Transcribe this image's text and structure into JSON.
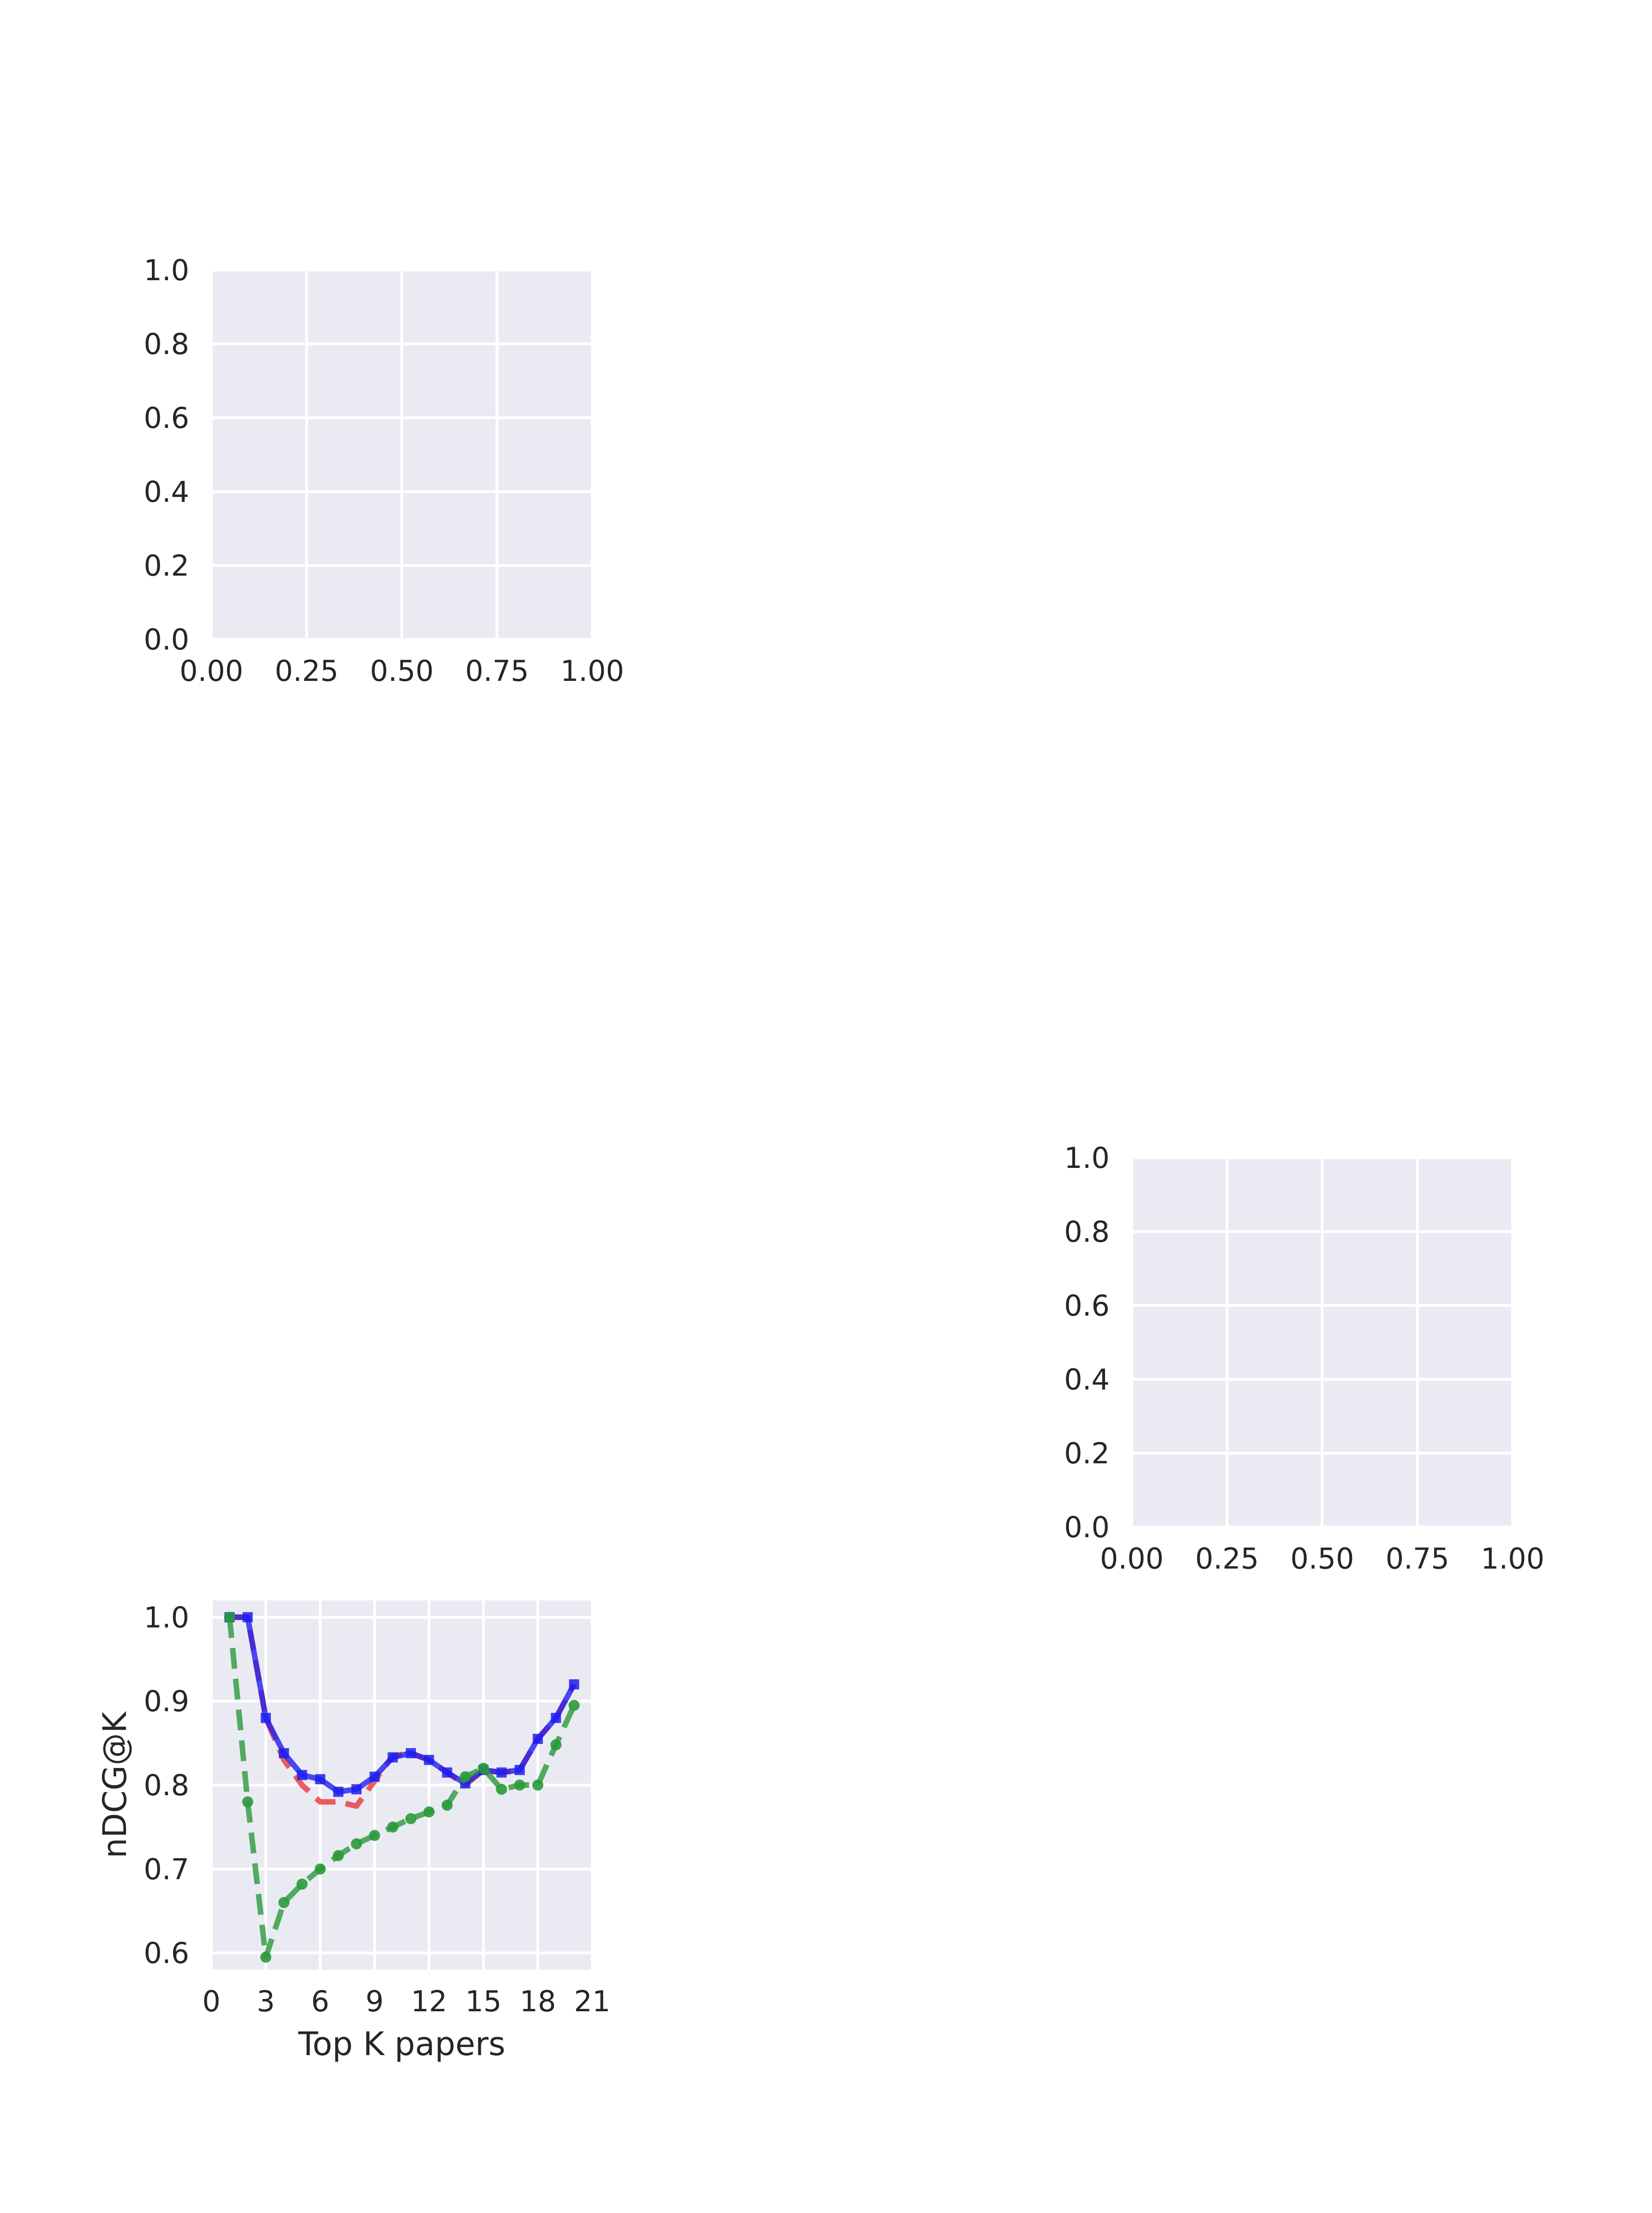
{
  "colors": {
    "plot_background": "#eaeaf2",
    "grid": "#ffffff",
    "text": "#262626"
  },
  "chart_data": [
    {
      "type": "line",
      "title": "",
      "xlabel": "",
      "ylabel": "",
      "xlim": [
        0,
        1
      ],
      "ylim": [
        0,
        1
      ],
      "grid": true,
      "x_ticks": [
        "0.00",
        "0.25",
        "0.50",
        "0.75",
        "1.00"
      ],
      "y_ticks": [
        "0.0",
        "0.2",
        "0.4",
        "0.6",
        "0.8",
        "1.0"
      ],
      "series": []
    },
    {
      "type": "line",
      "title": "",
      "xlabel": "",
      "ylabel": "",
      "xlim": [
        0,
        1
      ],
      "ylim": [
        0,
        1
      ],
      "grid": true,
      "x_ticks": [
        "0.00",
        "0.25",
        "0.50",
        "0.75",
        "1.00"
      ],
      "y_ticks": [
        "0.0",
        "0.2",
        "0.4",
        "0.6",
        "0.8",
        "1.0"
      ],
      "series": []
    },
    {
      "type": "line",
      "title": "",
      "xlabel": "Top K papers",
      "ylabel": "nDCG@K",
      "xlim": [
        0,
        21
      ],
      "ylim": [
        0.58,
        1.02
      ],
      "grid": true,
      "x_ticks": [
        "0",
        "3",
        "6",
        "9",
        "12",
        "15",
        "18",
        "21"
      ],
      "y_ticks": [
        "0.6",
        "0.7",
        "0.8",
        "0.9",
        "1.0"
      ],
      "series": [
        {
          "color": "#e8373a",
          "linestyle": "dashed",
          "marker": "none",
          "x": [
            1,
            2,
            3,
            4,
            5,
            6,
            7,
            8,
            9,
            10,
            11,
            12,
            13,
            14,
            15,
            16,
            17,
            18,
            19,
            20
          ],
          "y": [
            1.0,
            1.0,
            0.88,
            0.83,
            0.8,
            0.78,
            0.78,
            0.775,
            0.805,
            0.835,
            0.838,
            0.83,
            0.815,
            0.8,
            0.818,
            0.815,
            0.818,
            0.855,
            0.88,
            0.92
          ]
        },
        {
          "color": "#1f1ff0",
          "linestyle": "solid",
          "marker": "square",
          "x": [
            1,
            2,
            3,
            4,
            5,
            6,
            7,
            8,
            9,
            10,
            11,
            12,
            13,
            14,
            15,
            16,
            17,
            18,
            19,
            20
          ],
          "y": [
            1.0,
            1.0,
            0.88,
            0.838,
            0.812,
            0.807,
            0.792,
            0.795,
            0.81,
            0.833,
            0.838,
            0.83,
            0.815,
            0.802,
            0.818,
            0.815,
            0.818,
            0.855,
            0.88,
            0.92
          ]
        },
        {
          "color": "#2a9a3a",
          "linestyle": "dashed",
          "marker": "circle",
          "x": [
            1,
            2,
            3,
            4,
            5,
            6,
            7,
            8,
            9,
            10,
            11,
            12,
            13,
            14,
            15,
            16,
            17,
            18,
            19,
            20
          ],
          "y": [
            1.0,
            0.78,
            0.595,
            0.66,
            0.682,
            0.7,
            0.716,
            0.73,
            0.74,
            0.75,
            0.76,
            0.768,
            0.776,
            0.81,
            0.82,
            0.795,
            0.8,
            0.8,
            0.848,
            0.895
          ]
        }
      ]
    }
  ]
}
